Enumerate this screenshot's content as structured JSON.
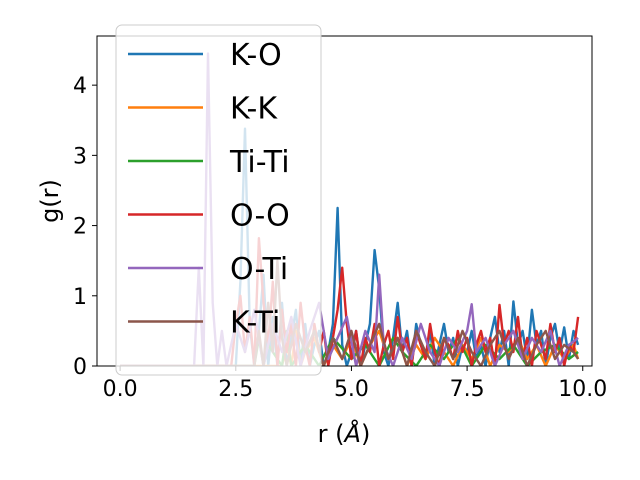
{
  "chart_data": {
    "type": "line",
    "xlabel_text": "r (",
    "xlabel_unit": "Å",
    "xlabel_close": ")",
    "ylabel": "g(r)",
    "xlim": [
      -0.5,
      10.2
    ],
    "ylim": [
      0,
      4.7
    ],
    "xticks": [
      0.0,
      2.5,
      5.0,
      7.5,
      10.0
    ],
    "xtick_labels": [
      "0.0",
      "2.5",
      "5.0",
      "7.5",
      "10.0"
    ],
    "yticks": [
      0,
      1,
      2,
      3,
      4
    ],
    "ytick_labels": [
      "0",
      "1",
      "2",
      "3",
      "4"
    ],
    "grid": false,
    "legend_position": "upper-left",
    "series": [
      {
        "name": "K-O",
        "color": "#1f77b4",
        "x": [
          0.0,
          2.5,
          2.6,
          2.7,
          2.8,
          2.9,
          3.0,
          3.1,
          3.2,
          3.3,
          3.4,
          3.5,
          3.6,
          3.7,
          3.8,
          3.9,
          4.0,
          4.1,
          4.2,
          4.3,
          4.4,
          4.5,
          4.6,
          4.7,
          4.8,
          4.9,
          5.0,
          5.1,
          5.2,
          5.3,
          5.4,
          5.5,
          5.6,
          5.7,
          5.8,
          5.9,
          6.0,
          6.1,
          6.2,
          6.3,
          6.4,
          6.5,
          6.6,
          6.7,
          6.8,
          6.9,
          7.0,
          7.1,
          7.2,
          7.3,
          7.4,
          7.5,
          7.6,
          7.7,
          7.8,
          7.9,
          8.0,
          8.1,
          8.2,
          8.3,
          8.4,
          8.5,
          8.6,
          8.7,
          8.8,
          8.9,
          9.0,
          9.1,
          9.2,
          9.3,
          9.4,
          9.5,
          9.6,
          9.7,
          9.8,
          9.9
        ],
        "y": [
          0.0,
          0.0,
          1.2,
          3.38,
          0.6,
          0.0,
          0.5,
          1.3,
          0.0,
          0.7,
          0.0,
          0.9,
          0.0,
          0.4,
          0.8,
          0.0,
          0.6,
          0.0,
          0.3,
          0.5,
          0.0,
          0.2,
          0.6,
          2.25,
          0.3,
          0.0,
          0.2,
          0.5,
          0.0,
          0.3,
          0.6,
          1.65,
          1.1,
          0.2,
          0.0,
          0.4,
          0.9,
          0.2,
          0.5,
          0.0,
          0.6,
          0.3,
          0.1,
          0.5,
          0.0,
          0.3,
          0.6,
          0.2,
          0.4,
          0.0,
          0.3,
          0.2,
          0.5,
          0.1,
          0.3,
          0.0,
          0.4,
          0.7,
          0.2,
          0.5,
          0.0,
          0.92,
          0.3,
          0.5,
          0.1,
          0.8,
          0.3,
          0.5,
          0.0,
          0.4,
          0.6,
          0.2,
          0.55,
          0.1,
          0.5,
          0.3
        ]
      },
      {
        "name": "K-K",
        "color": "#ff7f0e",
        "x": [
          0.0,
          3.5,
          3.6,
          3.7,
          3.8,
          3.9,
          4.0,
          4.2,
          4.4,
          4.6,
          4.8,
          5.0,
          5.2,
          5.4,
          5.6,
          5.8,
          6.0,
          6.2,
          6.4,
          6.6,
          6.8,
          7.0,
          7.2,
          7.4,
          7.6,
          7.8,
          8.0,
          8.2,
          8.4,
          8.6,
          8.8,
          9.0,
          9.2,
          9.4,
          9.6,
          9.8,
          9.9
        ],
        "y": [
          0.0,
          0.0,
          0.3,
          0.0,
          0.5,
          0.0,
          0.2,
          0.4,
          0.0,
          0.3,
          0.1,
          0.4,
          0.0,
          0.3,
          0.5,
          0.1,
          0.4,
          0.0,
          0.3,
          0.1,
          0.4,
          0.2,
          0.0,
          0.3,
          0.1,
          0.4,
          0.0,
          0.3,
          0.2,
          0.4,
          0.1,
          0.3,
          0.0,
          0.3,
          0.1,
          0.3,
          0.1
        ]
      },
      {
        "name": "Ti-Ti",
        "color": "#2ca02c",
        "x": [
          0.0,
          2.9,
          3.0,
          3.1,
          3.2,
          3.5,
          3.6,
          3.7,
          4.0,
          4.3,
          4.6,
          5.0,
          5.3,
          5.6,
          5.9,
          6.1,
          6.4,
          6.7,
          7.0,
          7.3,
          7.6,
          7.9,
          8.2,
          8.5,
          8.8,
          9.1,
          9.4,
          9.7,
          9.9
        ],
        "y": [
          0.0,
          0.0,
          0.4,
          0.0,
          0.3,
          0.0,
          0.5,
          0.0,
          0.3,
          0.0,
          0.4,
          0.1,
          0.3,
          0.0,
          0.4,
          0.2,
          0.0,
          0.3,
          0.1,
          0.4,
          0.0,
          0.3,
          0.1,
          0.3,
          0.0,
          0.2,
          0.3,
          0.1,
          0.2
        ]
      },
      {
        "name": "O-O",
        "color": "#d62728",
        "x": [
          0.0,
          2.4,
          2.5,
          2.6,
          2.7,
          2.8,
          2.9,
          3.0,
          3.1,
          3.2,
          3.3,
          3.4,
          3.5,
          3.6,
          3.7,
          3.8,
          3.9,
          4.0,
          4.1,
          4.2,
          4.3,
          4.4,
          4.5,
          4.6,
          4.7,
          4.8,
          4.9,
          5.0,
          5.1,
          5.2,
          5.3,
          5.4,
          5.5,
          5.6,
          5.7,
          5.8,
          5.9,
          6.0,
          6.1,
          6.2,
          6.3,
          6.4,
          6.5,
          6.6,
          6.7,
          6.8,
          6.9,
          7.0,
          7.1,
          7.2,
          7.3,
          7.4,
          7.5,
          7.6,
          7.7,
          7.8,
          7.9,
          8.0,
          8.1,
          8.2,
          8.3,
          8.4,
          8.5,
          8.6,
          8.7,
          8.8,
          8.9,
          9.0,
          9.1,
          9.2,
          9.3,
          9.4,
          9.5,
          9.6,
          9.7,
          9.8,
          9.9
        ],
        "y": [
          0.0,
          0.0,
          0.6,
          1.0,
          0.2,
          0.7,
          0.0,
          1.82,
          0.9,
          0.3,
          1.2,
          0.0,
          0.8,
          0.2,
          0.6,
          0.0,
          0.9,
          0.3,
          0.0,
          0.6,
          0.2,
          0.5,
          0.0,
          0.4,
          0.8,
          1.4,
          0.6,
          0.1,
          0.5,
          0.0,
          0.4,
          0.2,
          0.6,
          0.0,
          0.3,
          0.5,
          0.1,
          0.7,
          0.2,
          0.4,
          0.0,
          0.5,
          0.3,
          0.1,
          0.6,
          0.2,
          0.0,
          0.4,
          0.3,
          0.1,
          0.5,
          0.2,
          0.4,
          0.0,
          0.3,
          0.5,
          0.2,
          0.4,
          0.0,
          0.87,
          0.3,
          0.5,
          0.2,
          0.7,
          0.1,
          0.4,
          0.0,
          0.5,
          0.3,
          0.1,
          0.6,
          0.2,
          0.4,
          0.0,
          0.3,
          0.2,
          0.7
        ]
      },
      {
        "name": "O-Ti",
        "color": "#9467bd",
        "x": [
          0.0,
          1.6,
          1.7,
          1.8,
          1.9,
          2.0,
          2.1,
          2.2,
          2.3,
          2.5,
          2.7,
          2.9,
          3.1,
          3.3,
          3.5,
          3.7,
          3.9,
          4.1,
          4.3,
          4.5,
          4.7,
          4.9,
          5.1,
          5.3,
          5.5,
          5.6,
          5.7,
          5.9,
          6.1,
          6.3,
          6.5,
          6.7,
          6.9,
          7.1,
          7.3,
          7.5,
          7.6,
          7.7,
          7.9,
          8.1,
          8.3,
          8.5,
          8.7,
          8.9,
          9.1,
          9.3,
          9.5,
          9.7,
          9.9
        ],
        "y": [
          0.0,
          0.0,
          1.4,
          0.0,
          4.45,
          0.9,
          0.0,
          0.5,
          0.0,
          0.6,
          0.2,
          0.8,
          0.0,
          0.6,
          0.2,
          0.7,
          0.0,
          0.5,
          0.9,
          0.1,
          0.4,
          0.7,
          0.0,
          0.5,
          0.2,
          1.3,
          0.3,
          0.0,
          0.4,
          0.1,
          0.6,
          0.2,
          0.0,
          0.4,
          0.2,
          0.5,
          0.88,
          0.2,
          0.4,
          0.0,
          0.3,
          0.5,
          0.1,
          0.4,
          0.2,
          0.5,
          0.0,
          0.3,
          0.4
        ]
      },
      {
        "name": "K-Ti",
        "color": "#8c564b",
        "x": [
          0.0,
          2.9,
          3.0,
          3.1,
          3.2,
          3.3,
          3.4,
          3.5,
          3.6,
          3.8,
          4.0,
          4.2,
          4.4,
          4.6,
          4.8,
          5.0,
          5.2,
          5.4,
          5.6,
          5.8,
          6.0,
          6.2,
          6.4,
          6.6,
          6.8,
          7.0,
          7.2,
          7.4,
          7.6,
          7.8,
          8.0,
          8.2,
          8.4,
          8.6,
          8.8,
          9.0,
          9.2,
          9.4,
          9.6,
          9.8,
          9.9
        ],
        "y": [
          0.0,
          0.0,
          0.5,
          0.0,
          0.9,
          0.2,
          1.5,
          0.4,
          0.0,
          0.6,
          0.2,
          0.5,
          0.0,
          0.4,
          0.1,
          0.5,
          0.0,
          0.3,
          0.6,
          0.1,
          0.4,
          0.0,
          0.5,
          0.2,
          0.0,
          0.4,
          0.1,
          0.5,
          0.2,
          0.0,
          0.3,
          0.5,
          0.1,
          0.4,
          0.0,
          0.3,
          0.5,
          0.1,
          0.3,
          0.2,
          0.1
        ]
      }
    ]
  }
}
